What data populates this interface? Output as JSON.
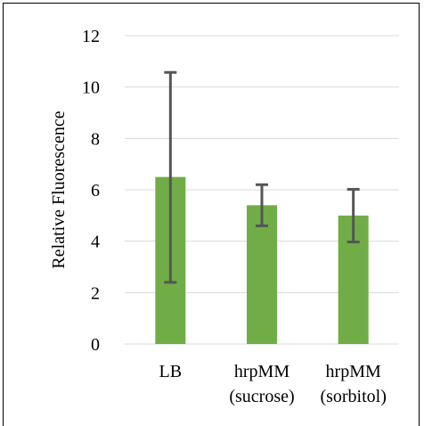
{
  "chart_data": {
    "type": "bar",
    "title": "",
    "xlabel": "",
    "ylabel": "Relative Fluorescence",
    "ylim": [
      0,
      12
    ],
    "yticks": [
      0,
      2,
      4,
      6,
      8,
      10,
      12
    ],
    "grid": true,
    "legend": "none",
    "categories": [
      [
        "LB"
      ],
      [
        "hrpMM",
        "(sucrose)"
      ],
      [
        "hrpMM",
        "(sorbitol)"
      ]
    ],
    "values": [
      6.5,
      5.4,
      5.0
    ],
    "error_low": [
      2.4,
      4.6,
      3.97
    ],
    "error_high": [
      10.57,
      6.2,
      6.02
    ],
    "bar_color": "#70ad47",
    "error_color": "#555555",
    "grid_color": "#d9d9d9"
  }
}
